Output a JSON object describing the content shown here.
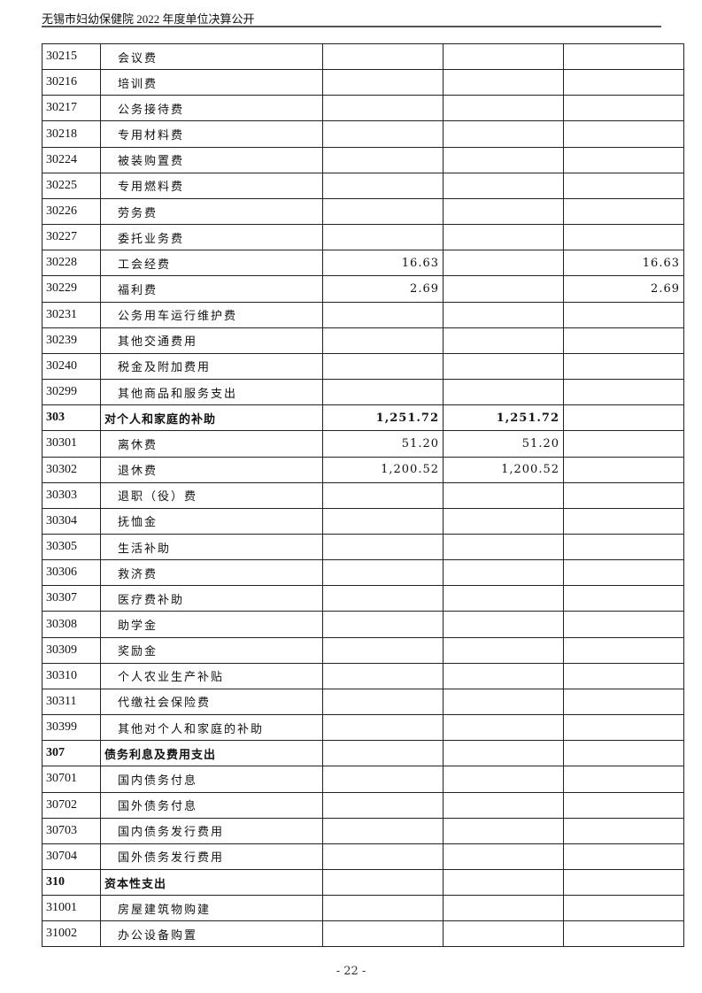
{
  "header": {
    "title": "无锡市妇幼保健院 2022 年度单位决算公开"
  },
  "footer": {
    "page": "- 22 -"
  },
  "table": {
    "rows": [
      {
        "code": "30215",
        "name": "会议费",
        "c1": "",
        "c2": "",
        "c3": ""
      },
      {
        "code": "30216",
        "name": "培训费",
        "c1": "",
        "c2": "",
        "c3": ""
      },
      {
        "code": "30217",
        "name": "公务接待费",
        "c1": "",
        "c2": "",
        "c3": ""
      },
      {
        "code": "30218",
        "name": "专用材料费",
        "c1": "",
        "c2": "",
        "c3": ""
      },
      {
        "code": "30224",
        "name": "被装购置费",
        "c1": "",
        "c2": "",
        "c3": ""
      },
      {
        "code": "30225",
        "name": "专用燃料费",
        "c1": "",
        "c2": "",
        "c3": ""
      },
      {
        "code": "30226",
        "name": "劳务费",
        "c1": "",
        "c2": "",
        "c3": ""
      },
      {
        "code": "30227",
        "name": "委托业务费",
        "c1": "",
        "c2": "",
        "c3": ""
      },
      {
        "code": "30228",
        "name": "工会经费",
        "c1": "16.63",
        "c2": "",
        "c3": "16.63"
      },
      {
        "code": "30229",
        "name": "福利费",
        "c1": "2.69",
        "c2": "",
        "c3": "2.69"
      },
      {
        "code": "30231",
        "name": "公务用车运行维护费",
        "c1": "",
        "c2": "",
        "c3": ""
      },
      {
        "code": "30239",
        "name": "其他交通费用",
        "c1": "",
        "c2": "",
        "c3": ""
      },
      {
        "code": "30240",
        "name": "税金及附加费用",
        "c1": "",
        "c2": "",
        "c3": ""
      },
      {
        "code": "30299",
        "name": "其他商品和服务支出",
        "c1": "",
        "c2": "",
        "c3": ""
      },
      {
        "code": "303",
        "name": "对个人和家庭的补助",
        "c1": "1,251.72",
        "c2": "1,251.72",
        "c3": "",
        "bold": true
      },
      {
        "code": "30301",
        "name": "离休费",
        "c1": "51.20",
        "c2": "51.20",
        "c3": ""
      },
      {
        "code": "30302",
        "name": "退休费",
        "c1": "1,200.52",
        "c2": "1,200.52",
        "c3": ""
      },
      {
        "code": "30303",
        "name": "退职（役）费",
        "c1": "",
        "c2": "",
        "c3": ""
      },
      {
        "code": "30304",
        "name": "抚恤金",
        "c1": "",
        "c2": "",
        "c3": ""
      },
      {
        "code": "30305",
        "name": "生活补助",
        "c1": "",
        "c2": "",
        "c3": ""
      },
      {
        "code": "30306",
        "name": "救济费",
        "c1": "",
        "c2": "",
        "c3": ""
      },
      {
        "code": "30307",
        "name": "医疗费补助",
        "c1": "",
        "c2": "",
        "c3": ""
      },
      {
        "code": "30308",
        "name": "助学金",
        "c1": "",
        "c2": "",
        "c3": ""
      },
      {
        "code": "30309",
        "name": "奖励金",
        "c1": "",
        "c2": "",
        "c3": ""
      },
      {
        "code": "30310",
        "name": "个人农业生产补贴",
        "c1": "",
        "c2": "",
        "c3": ""
      },
      {
        "code": "30311",
        "name": "代缴社会保险费",
        "c1": "",
        "c2": "",
        "c3": ""
      },
      {
        "code": "30399",
        "name": "其他对个人和家庭的补助",
        "c1": "",
        "c2": "",
        "c3": ""
      },
      {
        "code": "307",
        "name": "债务利息及费用支出",
        "c1": "",
        "c2": "",
        "c3": "",
        "bold": true
      },
      {
        "code": "30701",
        "name": "国内债务付息",
        "c1": "",
        "c2": "",
        "c3": ""
      },
      {
        "code": "30702",
        "name": "国外债务付息",
        "c1": "",
        "c2": "",
        "c3": ""
      },
      {
        "code": "30703",
        "name": "国内债务发行费用",
        "c1": "",
        "c2": "",
        "c3": ""
      },
      {
        "code": "30704",
        "name": "国外债务发行费用",
        "c1": "",
        "c2": "",
        "c3": ""
      },
      {
        "code": "310",
        "name": "资本性支出",
        "c1": "",
        "c2": "",
        "c3": "",
        "bold": true
      },
      {
        "code": "31001",
        "name": "房屋建筑物购建",
        "c1": "",
        "c2": "",
        "c3": ""
      },
      {
        "code": "31002",
        "name": "办公设备购置",
        "c1": "",
        "c2": "",
        "c3": ""
      }
    ]
  }
}
